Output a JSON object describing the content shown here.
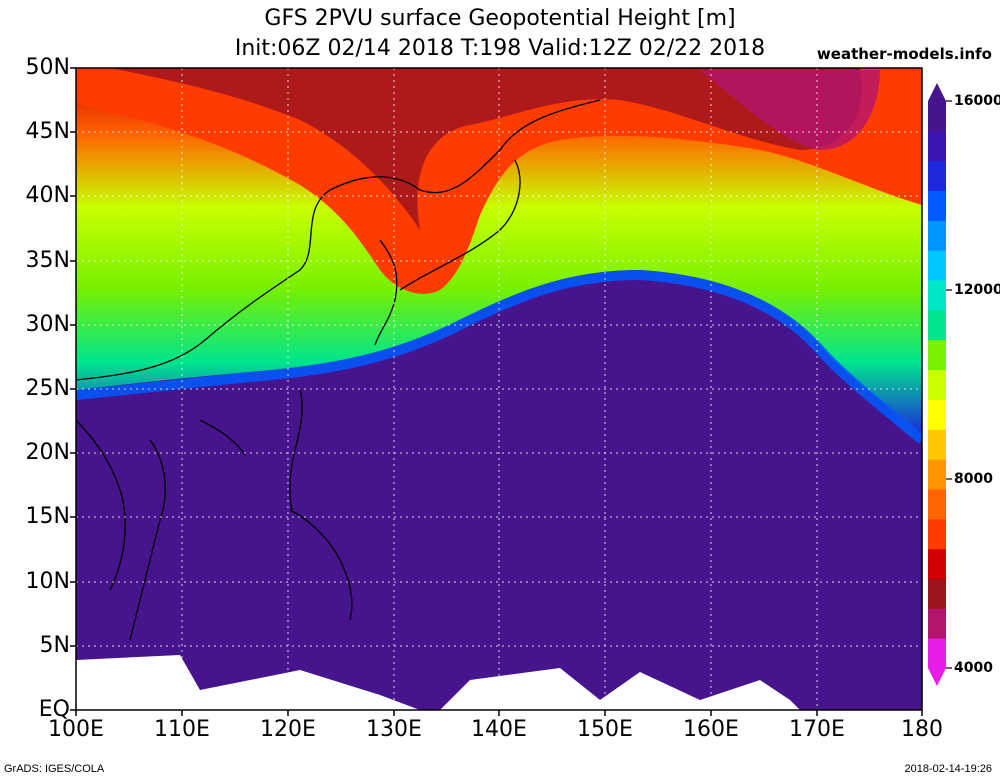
{
  "header": {
    "title_line1": "GFS 2PVU surface Geopotential Height [m]",
    "title_line2": "Init:06Z 02/14 2018 T:198 Valid:12Z 02/22 2018",
    "credit": "weather-models.info"
  },
  "axes": {
    "lat_labels": [
      "50N",
      "45N",
      "40N",
      "35N",
      "30N",
      "25N",
      "20N",
      "15N",
      "10N",
      "5N",
      "EQ"
    ],
    "lon_labels": [
      "100E",
      "110E",
      "120E",
      "130E",
      "140E",
      "150E",
      "160E",
      "170E",
      "180"
    ]
  },
  "colorbar": {
    "labels": [
      "16000",
      "12000",
      "8000",
      "4000"
    ],
    "colors": [
      "#e81ee8",
      "#b4146e",
      "#a0141e",
      "#d20000",
      "#ff3c00",
      "#ff6400",
      "#ff9600",
      "#ffc800",
      "#ffff00",
      "#c8ff00",
      "#78f000",
      "#00e68c",
      "#00e6c8",
      "#00c8ff",
      "#0096ff",
      "#005aff",
      "#1e28dc",
      "#3c14b4",
      "#46148c"
    ]
  },
  "footer": {
    "left": "GrADS: IGES/COLA",
    "right": "2018-02-14-19:26"
  }
}
